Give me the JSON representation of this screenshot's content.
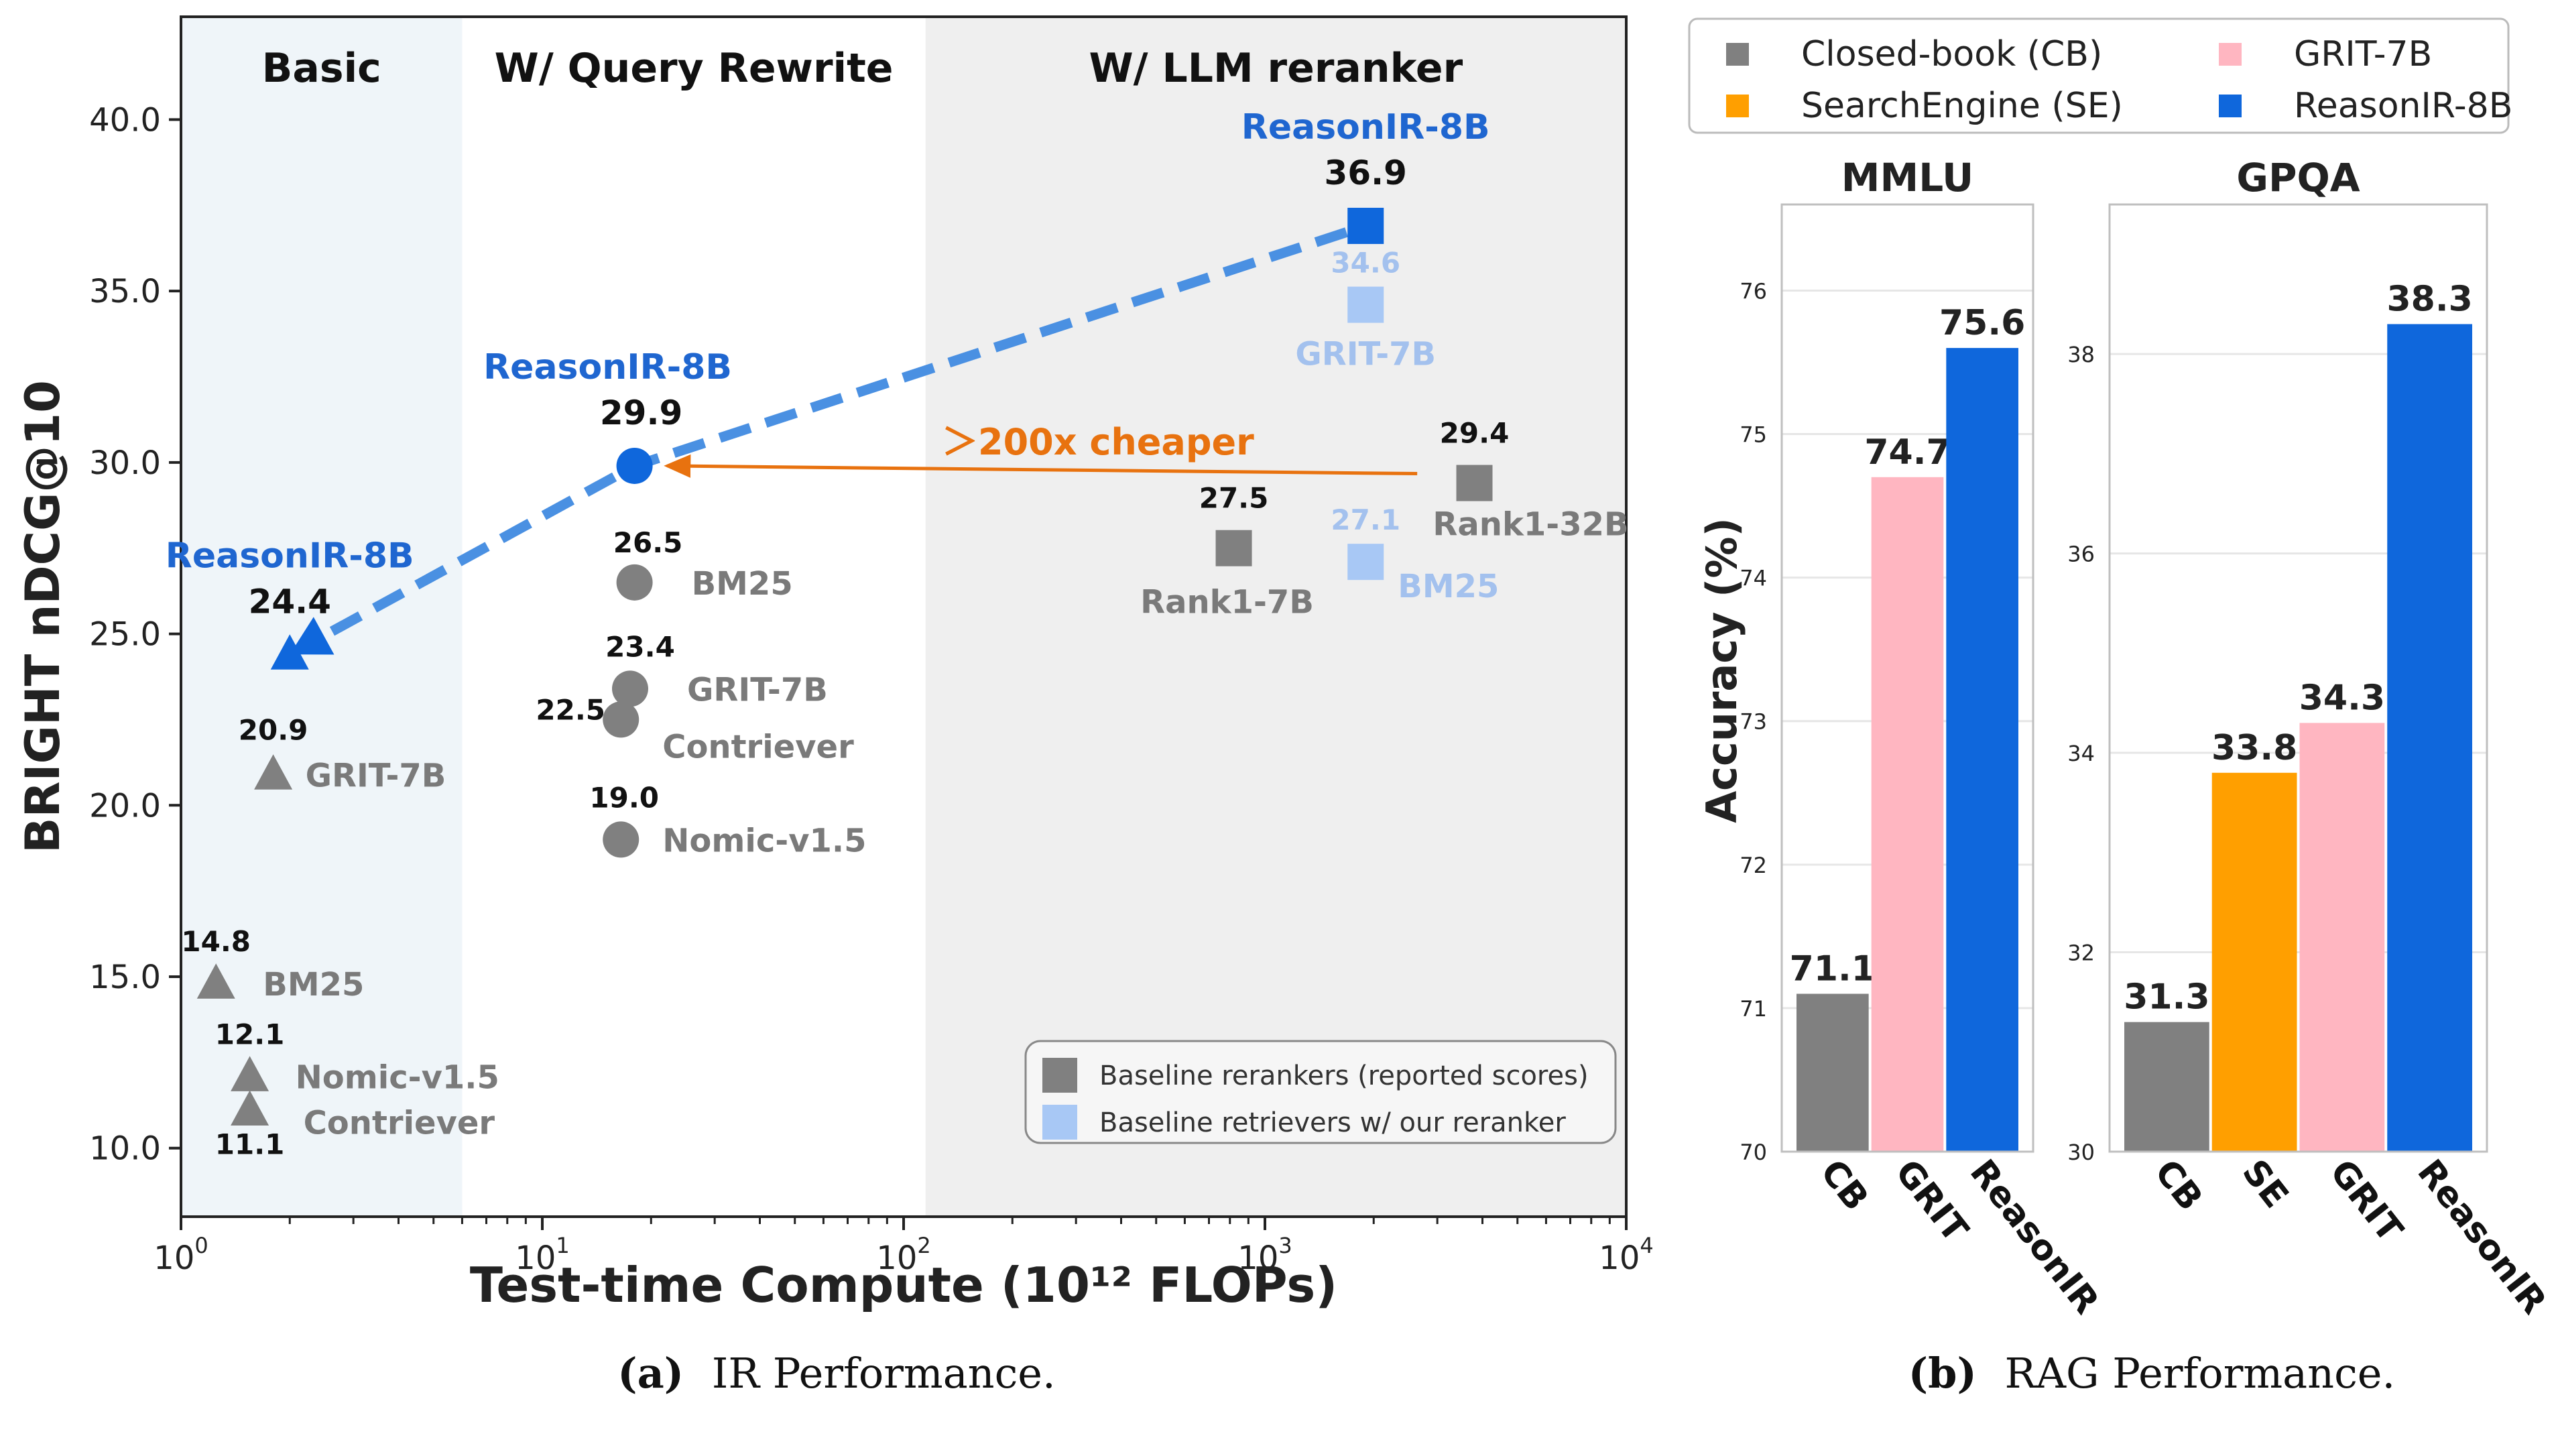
{
  "colors": {
    "blue": "#0f67dc",
    "blue_text": "#1f66d0",
    "light_blue": "#a8c8f5",
    "light_blue_text": "#a3c1ee",
    "gray": "#808080",
    "gray_text": "#7a7a7a",
    "orange": "#ff9f00",
    "orange_arrow": "#e8720f",
    "pink": "#ffb6c1",
    "dashed_line": "#4a90e2",
    "basic_bg": "#eff5f9",
    "reranker_bg": "#efefef"
  },
  "chart_data": [
    {
      "id": "ir",
      "type": "scatter",
      "xscale": "log",
      "xlim": [
        1,
        10000
      ],
      "ylim": [
        8,
        43
      ],
      "xlabel": "Test-time Compute (10¹² FLOPs)",
      "ylabel": "BRIGHT nDCG@10",
      "xticks": [
        {
          "value": 1,
          "base": "10",
          "exp": "0"
        },
        {
          "value": 10,
          "base": "10",
          "exp": "1"
        },
        {
          "value": 100,
          "base": "10",
          "exp": "2"
        },
        {
          "value": 1000,
          "base": "10",
          "exp": "3"
        },
        {
          "value": 10000,
          "base": "10",
          "exp": "4"
        }
      ],
      "yticks": [
        10.0,
        15.0,
        20.0,
        25.0,
        30.0,
        35.0,
        40.0
      ],
      "ytick_labels": [
        "10.0",
        "15.0",
        "20.0",
        "25.0",
        "30.0",
        "35.0",
        "40.0"
      ],
      "regions": [
        {
          "label": "Basic",
          "x_from": 1,
          "x_to": 6,
          "fill": "basic"
        },
        {
          "label": "W/ Query Rewrite",
          "x_from": 6,
          "x_to": 115,
          "fill": "none"
        },
        {
          "label": "W/ LLM reranker",
          "x_from": 115,
          "x_to": 10000,
          "fill": "reranker"
        }
      ],
      "points": [
        {
          "name": "ReasonIR-8B",
          "x": 2.0,
          "y": 24.4,
          "value": "24.4",
          "shape": "triangle",
          "color": "blue"
        },
        {
          "name": "GRIT-7B",
          "x": 1.8,
          "y": 20.9,
          "value": "20.9",
          "shape": "triangle",
          "color": "gray"
        },
        {
          "name": "BM25",
          "x": 1.25,
          "y": 14.8,
          "value": "14.8",
          "shape": "triangle",
          "color": "gray"
        },
        {
          "name": "Nomic-v1.5",
          "x": 1.55,
          "y": 12.1,
          "value": "12.1",
          "shape": "triangle",
          "color": "gray"
        },
        {
          "name": "Contriever",
          "x": 1.55,
          "y": 11.1,
          "value": "11.1",
          "shape": "triangle",
          "color": "gray"
        },
        {
          "name": "ReasonIR-8B",
          "x": 18,
          "y": 29.9,
          "value": "29.9",
          "shape": "circle",
          "color": "blue"
        },
        {
          "name": "BM25",
          "x": 18,
          "y": 26.5,
          "value": "26.5",
          "shape": "circle",
          "color": "gray"
        },
        {
          "name": "GRIT-7B",
          "x": 17.5,
          "y": 23.4,
          "value": "23.4",
          "shape": "circle",
          "color": "gray"
        },
        {
          "name": "Contriever",
          "x": 16.5,
          "y": 22.5,
          "value": "22.5",
          "shape": "circle",
          "color": "gray"
        },
        {
          "name": "Nomic-v1.5",
          "x": 16.5,
          "y": 19.0,
          "value": "19.0",
          "shape": "circle",
          "color": "gray"
        },
        {
          "name": "ReasonIR-8B",
          "x": 1900,
          "y": 36.9,
          "value": "36.9",
          "shape": "square",
          "color": "blue"
        },
        {
          "name": "GRIT-7B",
          "x": 1900,
          "y": 34.6,
          "value": "34.6",
          "shape": "square",
          "color": "light_blue"
        },
        {
          "name": "BM25",
          "x": 1900,
          "y": 27.1,
          "value": "27.1",
          "shape": "square",
          "color": "light_blue"
        },
        {
          "name": "Rank1-7B",
          "x": 820,
          "y": 27.5,
          "value": "27.5",
          "shape": "square",
          "color": "gray"
        },
        {
          "name": "Rank1-32B",
          "x": 3800,
          "y": 29.4,
          "value": "29.4",
          "shape": "square",
          "color": "gray"
        }
      ],
      "trend_line": [
        [
          2.0,
          24.4
        ],
        [
          18,
          29.9
        ],
        [
          1900,
          36.9
        ]
      ],
      "annotation": {
        "text": "＞200x cheaper",
        "from": [
          3000,
          29.4
        ],
        "to": [
          20,
          29.9
        ]
      },
      "legend": {
        "position": "bottom-right",
        "items": [
          {
            "label": "Baseline rerankers (reported scores)",
            "color": "gray"
          },
          {
            "label": "Baseline retrievers w/ our reranker",
            "color": "light_blue"
          }
        ]
      },
      "caption": {
        "prefix": "(a)",
        "text": "IR Performance."
      }
    },
    {
      "id": "rag",
      "type": "bar",
      "ylabel": "Accuracy (%)",
      "legend": {
        "position": "top",
        "items": [
          {
            "label": "Closed-book (CB)",
            "color": "gray"
          },
          {
            "label": "GRIT-7B",
            "color": "pink"
          },
          {
            "label": "SearchEngine (SE)",
            "color": "orange"
          },
          {
            "label": "ReasonIR-8B",
            "color": "blue"
          }
        ]
      },
      "panels": [
        {
          "title": "MMLU",
          "ylim": [
            70,
            76.6
          ],
          "yticks": [
            70,
            71,
            72,
            73,
            74,
            75,
            76
          ],
          "categories": [
            "CB",
            "GRIT",
            "ReasonIR"
          ],
          "values": [
            71.1,
            74.7,
            75.6
          ],
          "labels": [
            "71.1",
            "74.7",
            "75.6"
          ],
          "colors": [
            "gray",
            "pink",
            "blue"
          ]
        },
        {
          "title": "GPQA",
          "ylim": [
            30,
            39.5
          ],
          "yticks": [
            30,
            32,
            34,
            36,
            38
          ],
          "categories": [
            "CB",
            "SE",
            "GRIT",
            "ReasonIR"
          ],
          "values": [
            31.3,
            33.8,
            34.3,
            38.3
          ],
          "labels": [
            "31.3",
            "33.8",
            "34.3",
            "38.3"
          ],
          "colors": [
            "gray",
            "orange",
            "pink",
            "blue"
          ]
        }
      ],
      "caption": {
        "prefix": "(b)",
        "text": "RAG Performance."
      }
    }
  ]
}
